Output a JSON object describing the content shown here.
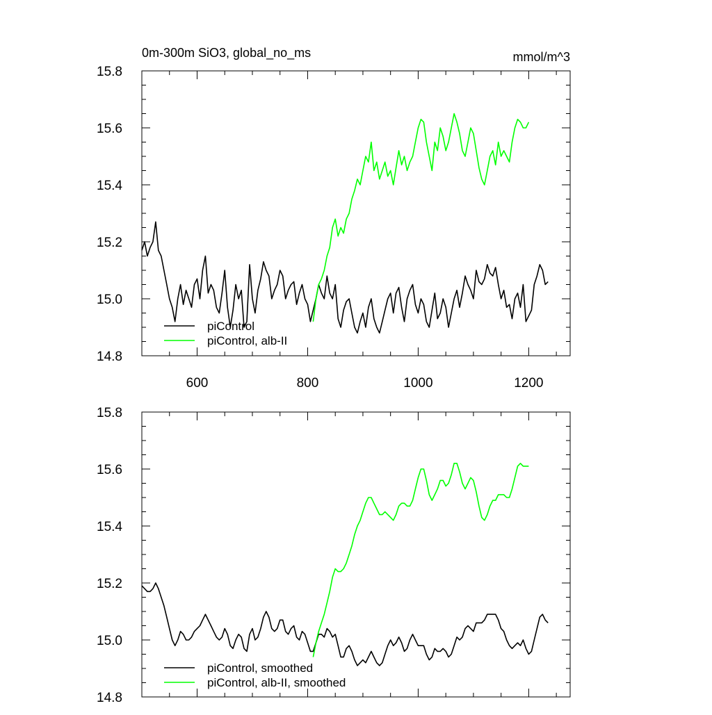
{
  "chart_data": [
    {
      "type": "line",
      "title": "0m-300m SiO3, global_no_ms",
      "units": "mmol/m^3",
      "xlim": [
        500,
        1275
      ],
      "ylim": [
        14.8,
        15.8
      ],
      "xticks": [
        600,
        800,
        1000,
        1200
      ],
      "xtick_labels": [
        "600",
        "800",
        "1000",
        "1200"
      ],
      "yticks": [
        14.8,
        15.0,
        15.2,
        15.4,
        15.6,
        15.8
      ],
      "ytick_labels": [
        "14.8",
        "15.0",
        "15.2",
        "15.4",
        "15.6",
        "15.8"
      ],
      "legend_position": "bottom-left",
      "series": [
        {
          "name": "piControl",
          "color": "#000000",
          "x_start": 500,
          "x_step": 5,
          "values": [
            15.17,
            15.2,
            15.15,
            15.18,
            15.2,
            15.27,
            15.17,
            15.15,
            15.1,
            15.05,
            15.0,
            14.97,
            14.92,
            15.0,
            15.05,
            14.98,
            15.03,
            15.0,
            14.97,
            15.05,
            15.07,
            15.0,
            15.1,
            15.15,
            15.02,
            15.05,
            15.03,
            14.97,
            14.95,
            15.02,
            15.1,
            14.97,
            14.9,
            14.96,
            15.05,
            15.0,
            15.03,
            14.9,
            14.92,
            15.12,
            15.0,
            14.95,
            15.03,
            15.07,
            15.13,
            15.1,
            15.08,
            15.0,
            15.03,
            15.05,
            15.1,
            15.08,
            15.0,
            15.03,
            15.05,
            15.06,
            14.98,
            15.02,
            15.05,
            15.0,
            14.98,
            14.92,
            14.96,
            15.0,
            15.05,
            15.02,
            15.0,
            15.08,
            15.02,
            15.0,
            15.05,
            14.93,
            14.9,
            14.96,
            14.99,
            15.0,
            14.95,
            14.9,
            14.88,
            14.92,
            14.95,
            14.9,
            14.97,
            15.0,
            14.93,
            14.9,
            14.88,
            14.92,
            14.96,
            15.0,
            15.02,
            14.95,
            15.02,
            15.04,
            14.97,
            14.92,
            15.0,
            15.03,
            15.05,
            14.98,
            14.95,
            15.0,
            14.98,
            14.92,
            14.9,
            14.96,
            15.02,
            14.93,
            14.95,
            15.0,
            14.97,
            14.9,
            14.95,
            15.0,
            15.03,
            14.97,
            15.02,
            15.08,
            15.05,
            15.03,
            15.0,
            15.1,
            15.06,
            15.05,
            15.07,
            15.12,
            15.09,
            15.08,
            15.11,
            15.05,
            15.0,
            15.03,
            14.97,
            14.98,
            14.93,
            15.0,
            15.02,
            14.97,
            15.05,
            14.92,
            14.94,
            14.96,
            15.05,
            15.08,
            15.12,
            15.1,
            15.05,
            15.06
          ]
        },
        {
          "name": "piControl, alb-II",
          "color": "#00ff00",
          "x_start": 810,
          "x_step": 5,
          "values": [
            14.92,
            15.0,
            15.05,
            15.07,
            15.1,
            15.15,
            15.18,
            15.25,
            15.28,
            15.22,
            15.25,
            15.23,
            15.28,
            15.3,
            15.35,
            15.38,
            15.42,
            15.4,
            15.45,
            15.5,
            15.48,
            15.55,
            15.45,
            15.48,
            15.42,
            15.45,
            15.48,
            15.43,
            15.45,
            15.4,
            15.46,
            15.52,
            15.47,
            15.5,
            15.45,
            15.48,
            15.5,
            15.55,
            15.6,
            15.63,
            15.62,
            15.55,
            15.5,
            15.45,
            15.55,
            15.52,
            15.6,
            15.57,
            15.52,
            15.55,
            15.6,
            15.65,
            15.62,
            15.58,
            15.52,
            15.5,
            15.55,
            15.6,
            15.58,
            15.52,
            15.46,
            15.42,
            15.4,
            15.45,
            15.5,
            15.52,
            15.47,
            15.55,
            15.5,
            15.52,
            15.5,
            15.48,
            15.55,
            15.6,
            15.63,
            15.62,
            15.6,
            15.6,
            15.62
          ]
        }
      ]
    },
    {
      "type": "line",
      "title": "",
      "xlim": [
        500,
        1275
      ],
      "ylim": [
        14.8,
        15.8
      ],
      "xticks": [
        600,
        800,
        1000,
        1200
      ],
      "yticks": [
        14.8,
        15.0,
        15.2,
        15.4,
        15.6,
        15.8
      ],
      "ytick_labels": [
        "14.8",
        "15.0",
        "15.2",
        "15.4",
        "15.6",
        "15.8"
      ],
      "legend_position": "bottom-left",
      "series": [
        {
          "name": "piControl, smoothed",
          "color": "#000000",
          "x_start": 500,
          "x_step": 5,
          "values": [
            15.19,
            15.18,
            15.17,
            15.17,
            15.18,
            15.2,
            15.18,
            15.15,
            15.12,
            15.08,
            15.04,
            15.0,
            14.98,
            15.0,
            15.03,
            15.02,
            15.0,
            15.0,
            15.01,
            15.03,
            15.04,
            15.05,
            15.07,
            15.09,
            15.07,
            15.05,
            15.03,
            15.01,
            15.0,
            15.01,
            15.04,
            15.02,
            14.98,
            14.97,
            15.0,
            15.02,
            15.01,
            14.97,
            14.96,
            15.02,
            15.04,
            15.0,
            15.01,
            15.04,
            15.08,
            15.1,
            15.08,
            15.04,
            15.03,
            15.04,
            15.07,
            15.07,
            15.03,
            15.02,
            15.04,
            15.05,
            15.01,
            15.0,
            15.03,
            15.02,
            14.99,
            14.96,
            14.96,
            14.99,
            15.02,
            15.02,
            15.01,
            15.04,
            15.03,
            15.01,
            15.02,
            14.98,
            14.94,
            14.94,
            14.97,
            14.98,
            14.96,
            14.93,
            14.91,
            14.92,
            14.93,
            14.92,
            14.94,
            14.96,
            14.94,
            14.92,
            14.91,
            14.92,
            14.95,
            14.98,
            15.0,
            14.98,
            14.99,
            15.01,
            14.99,
            14.96,
            14.97,
            15.0,
            15.02,
            15.0,
            14.98,
            14.98,
            14.98,
            14.95,
            14.93,
            14.94,
            14.97,
            14.96,
            14.96,
            14.97,
            14.96,
            14.94,
            14.95,
            14.98,
            15.01,
            15.0,
            15.01,
            15.04,
            15.05,
            15.04,
            15.03,
            15.06,
            15.06,
            15.06,
            15.07,
            15.09,
            15.09,
            15.09,
            15.09,
            15.07,
            15.04,
            15.03,
            15.0,
            14.98,
            14.97,
            14.98,
            14.99,
            14.98,
            15.0,
            14.97,
            14.95,
            14.96,
            15.0,
            15.04,
            15.08,
            15.09,
            15.07,
            15.06
          ]
        },
        {
          "name": "piControl, alb-II, smoothed",
          "color": "#00ff00",
          "x_start": 810,
          "x_step": 5,
          "values": [
            14.94,
            14.99,
            15.03,
            15.06,
            15.09,
            15.13,
            15.17,
            15.22,
            15.25,
            15.24,
            15.24,
            15.25,
            15.27,
            15.3,
            15.33,
            15.37,
            15.4,
            15.42,
            15.45,
            15.48,
            15.5,
            15.5,
            15.48,
            15.46,
            15.44,
            15.44,
            15.45,
            15.44,
            15.43,
            15.42,
            15.44,
            15.47,
            15.48,
            15.48,
            15.47,
            15.47,
            15.49,
            15.53,
            15.57,
            15.6,
            15.6,
            15.56,
            15.51,
            15.49,
            15.51,
            15.53,
            15.56,
            15.56,
            15.54,
            15.55,
            15.58,
            15.62,
            15.62,
            15.59,
            15.55,
            15.53,
            15.55,
            15.57,
            15.56,
            15.52,
            15.47,
            15.43,
            15.42,
            15.44,
            15.47,
            15.49,
            15.49,
            15.51,
            15.51,
            15.51,
            15.5,
            15.5,
            15.53,
            15.57,
            15.61,
            15.62,
            15.61,
            15.61,
            15.61
          ]
        }
      ]
    }
  ]
}
